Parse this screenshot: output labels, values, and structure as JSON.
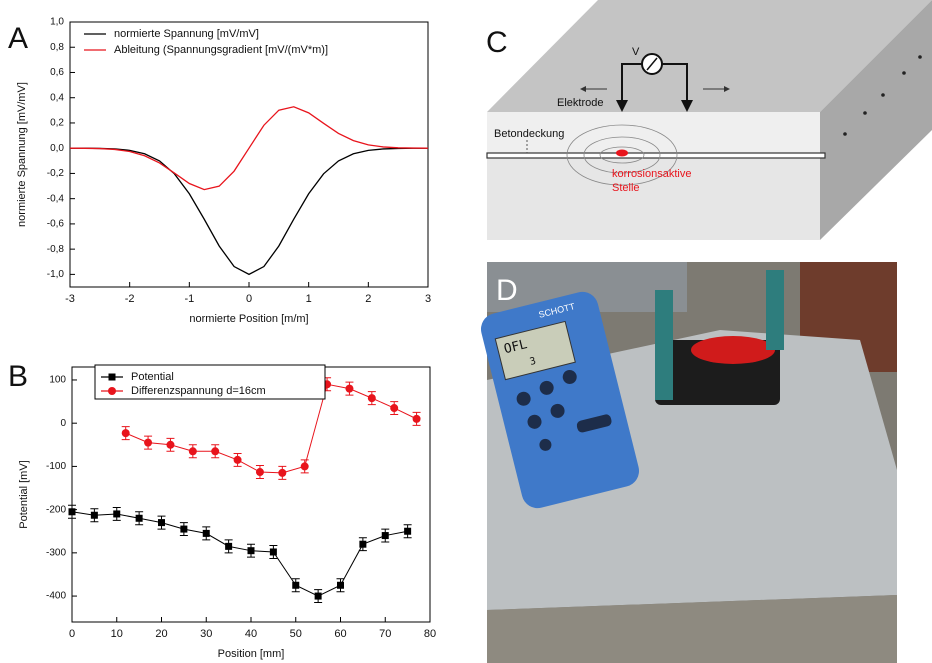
{
  "panel_labels": [
    "A",
    "B",
    "C",
    "D"
  ],
  "chart_data": [
    {
      "type": "line",
      "xlabel": "normierte Position [m/m]",
      "ylabel": "normierte Spannung [mV/mV]",
      "x": [
        -3,
        -2.75,
        -2.5,
        -2.25,
        -2,
        -1.75,
        -1.5,
        -1.25,
        -1,
        -0.75,
        -0.5,
        -0.25,
        0,
        0.25,
        0.5,
        0.75,
        1,
        1.25,
        1.5,
        1.75,
        2,
        2.25,
        2.5,
        2.75,
        3
      ],
      "series": [
        {
          "name": "normierte Spannung [mV/mV]",
          "color": "#000000",
          "values": [
            0,
            0,
            -0.002,
            -0.006,
            -0.017,
            -0.044,
            -0.101,
            -0.203,
            -0.361,
            -0.563,
            -0.775,
            -0.938,
            -1,
            -0.938,
            -0.775,
            -0.563,
            -0.361,
            -0.203,
            -0.101,
            -0.044,
            -0.017,
            -0.006,
            -0.002,
            0,
            0
          ]
        },
        {
          "name": "Ableitung (Spannungsgradient [mV/(mV*m)]",
          "color": "#e8141c",
          "values": [
            0,
            -0.001,
            -0.003,
            -0.01,
            -0.026,
            -0.06,
            -0.117,
            -0.197,
            -0.28,
            -0.328,
            -0.301,
            -0.182,
            0,
            0.182,
            0.301,
            0.328,
            0.28,
            0.197,
            0.117,
            0.06,
            0.026,
            0.01,
            0.003,
            0.001,
            0
          ]
        }
      ],
      "xlim": [
        -3,
        3
      ],
      "xticks": [
        -3,
        -2,
        -1,
        0,
        1,
        2,
        3
      ],
      "ylim": [
        -1.1,
        1.0
      ],
      "yticks": [
        {
          "value": -1.0,
          "label": "-1,0"
        },
        {
          "value": -0.8,
          "label": "-0,8"
        },
        {
          "value": -0.6,
          "label": "-0,6"
        },
        {
          "value": -0.4,
          "label": "-0,4"
        },
        {
          "value": -0.2,
          "label": "-0,2"
        },
        {
          "value": 0.0,
          "label": "0,0"
        },
        {
          "value": 0.2,
          "label": "0,2"
        },
        {
          "value": 0.4,
          "label": "0,4"
        },
        {
          "value": 0.6,
          "label": "0,6"
        },
        {
          "value": 0.8,
          "label": "0,8"
        },
        {
          "value": 1.0,
          "label": "1,0"
        }
      ],
      "legend": "upper left",
      "grid": false
    },
    {
      "type": "scatter",
      "xlabel": "Position [mm]",
      "ylabel": "Potential [mV]",
      "series": [
        {
          "name": "Potential",
          "color": "#000000",
          "marker": "square",
          "x": [
            0,
            5,
            10,
            15,
            20,
            25,
            30,
            35,
            40,
            45,
            50,
            55,
            60,
            65,
            70,
            75
          ],
          "values": [
            -205,
            -213,
            -210,
            -220,
            -230,
            -245,
            -255,
            -285,
            -295,
            -298,
            -375,
            -400,
            -375,
            -280,
            -260,
            -250
          ],
          "errors": [
            15,
            15,
            15,
            15,
            15,
            15,
            15,
            15,
            15,
            15,
            15,
            15,
            15,
            15,
            15,
            15
          ]
        },
        {
          "name": "Differenzspannung d=16cm",
          "color": "#e8141c",
          "marker": "circle",
          "x": [
            12,
            17,
            22,
            27,
            32,
            37,
            42,
            47,
            52,
            57,
            62,
            67,
            72,
            77
          ],
          "values": [
            -23,
            -45,
            -50,
            -65,
            -65,
            -85,
            -113,
            -115,
            -100,
            90,
            80,
            58,
            35,
            10
          ],
          "errors": [
            15,
            15,
            15,
            15,
            15,
            15,
            15,
            15,
            15,
            15,
            15,
            15,
            15,
            15
          ]
        }
      ],
      "xlim": [
        0,
        80
      ],
      "xticks": [
        0,
        10,
        20,
        30,
        40,
        50,
        60,
        70,
        80
      ],
      "ylim": [
        -460,
        130
      ],
      "yticks": [
        -400,
        -300,
        -200,
        -100,
        0,
        100
      ],
      "legend": "upper left",
      "grid": false
    }
  ],
  "diagram": {
    "voltmeter": "V",
    "electrode": "Elektrode",
    "cover": "Betondeckung",
    "spot": [
      "korrosionsaktive",
      "Stelle"
    ]
  },
  "photo": {
    "brand": "SCHOTT",
    "display": [
      "OFL",
      "3"
    ]
  }
}
